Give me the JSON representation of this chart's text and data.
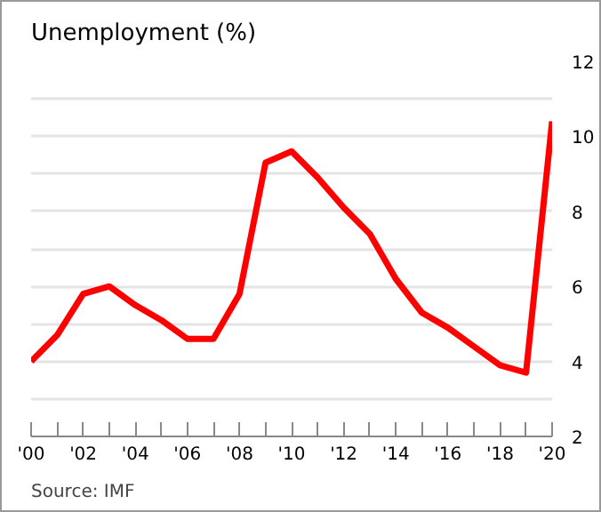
{
  "chart_data": {
    "type": "line",
    "title": "Unemployment (%)",
    "annotations": [
      "Source: IMF"
    ],
    "x": [
      2000,
      2001,
      2002,
      2003,
      2004,
      2005,
      2006,
      2007,
      2008,
      2009,
      2010,
      2011,
      2012,
      2013,
      2014,
      2015,
      2016,
      2017,
      2018,
      2019,
      2020
    ],
    "series": [
      {
        "color": "#ff0000",
        "values": [
          4.0,
          4.7,
          5.8,
          6.0,
          5.5,
          5.1,
          4.6,
          4.6,
          5.8,
          9.3,
          9.6,
          8.9,
          8.1,
          7.4,
          6.2,
          5.3,
          4.9,
          4.4,
          3.9,
          3.7,
          10.4
        ]
      }
    ],
    "xlim": [
      2000,
      2020
    ],
    "xticks": [
      {
        "value": 2000,
        "label": "'00"
      },
      {
        "value": 2001,
        "label": null
      },
      {
        "value": 2002,
        "label": "'02"
      },
      {
        "value": 2003,
        "label": null
      },
      {
        "value": 2004,
        "label": "'04"
      },
      {
        "value": 2005,
        "label": null
      },
      {
        "value": 2006,
        "label": "'06"
      },
      {
        "value": 2007,
        "label": null
      },
      {
        "value": 2008,
        "label": "'08"
      },
      {
        "value": 2009,
        "label": null
      },
      {
        "value": 2010,
        "label": "'10"
      },
      {
        "value": 2011,
        "label": null
      },
      {
        "value": 2012,
        "label": "'12"
      },
      {
        "value": 2013,
        "label": null
      },
      {
        "value": 2014,
        "label": "'14"
      },
      {
        "value": 2015,
        "label": null
      },
      {
        "value": 2016,
        "label": "'16"
      },
      {
        "value": 2017,
        "label": null
      },
      {
        "value": 2018,
        "label": "'18"
      },
      {
        "value": 2019,
        "label": null
      },
      {
        "value": 2020,
        "label": "'20"
      }
    ],
    "ylim": [
      2,
      12
    ],
    "yticks": [
      2,
      {
        "value": 3,
        "label": null
      },
      4,
      {
        "value": 5,
        "label": null
      },
      6,
      {
        "value": 7,
        "label": null
      },
      8,
      {
        "value": 9,
        "label": null
      },
      10,
      {
        "value": 11,
        "label": null
      },
      12
    ],
    "grid": "y",
    "marker": "none",
    "line_style": "solid"
  }
}
